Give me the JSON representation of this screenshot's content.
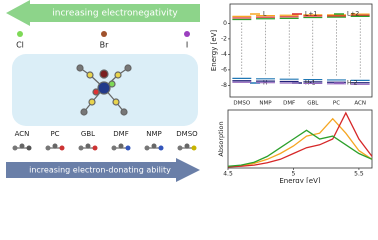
{
  "top_arrow": "increasing electronegativity",
  "halogens": [
    "Cl",
    "Br",
    "I"
  ],
  "solvents": [
    "ACN",
    "PC",
    "GBL",
    "DMF",
    "NMP",
    "DMSO"
  ],
  "bottom_arrow": "increasing electron-donating ability",
  "chart_data": [
    {
      "type": "level",
      "y_label": "Energy [eV]",
      "categories": [
        "DMSO",
        "NMP",
        "DMF",
        "GBL",
        "PC",
        "ACN"
      ],
      "ylim": [
        -9.5,
        2.5
      ],
      "yticks": [
        0,
        -2,
        -4,
        -6,
        -8
      ],
      "series": [
        {
          "name": "L",
          "color": "#f5a623",
          "values": [
            0.9,
            1.0,
            1.05,
            1.1,
            1.1,
            1.2
          ]
        },
        {
          "name": "L+1",
          "color": "#d62728",
          "values": [
            0.7,
            0.8,
            0.85,
            0.95,
            0.95,
            1.05
          ]
        },
        {
          "name": "L+2",
          "color": "#2ca02c",
          "values": [
            0.5,
            0.6,
            0.65,
            0.75,
            0.8,
            0.9
          ]
        },
        {
          "name": "H",
          "color": "#1f77b4",
          "values": [
            -7.1,
            -7.15,
            -7.2,
            -7.25,
            -7.3,
            -7.35
          ]
        },
        {
          "name": "H-1",
          "color": "#22227a",
          "values": [
            -7.4,
            -7.45,
            -7.5,
            -7.55,
            -7.6,
            -7.65
          ]
        },
        {
          "name": "H-2",
          "color": "#9467bd",
          "values": [
            -7.6,
            -7.65,
            -7.7,
            -7.75,
            -7.8,
            -7.85
          ]
        }
      ]
    },
    {
      "type": "line",
      "x_label": "Energy [eV]",
      "y_label": "Absorption",
      "x": [
        4.5,
        4.6,
        4.7,
        4.8,
        4.9,
        5.0,
        5.1,
        5.2,
        5.3,
        5.4,
        5.5,
        5.6
      ],
      "xlim": [
        4.5,
        5.6
      ],
      "xticks": [
        4.5,
        5.0,
        5.5
      ],
      "ylim": [
        0,
        1
      ],
      "series": [
        {
          "color": "#f5a623",
          "values": [
            0.02,
            0.04,
            0.08,
            0.15,
            0.25,
            0.38,
            0.55,
            0.6,
            0.85,
            0.6,
            0.3,
            0.15
          ]
        },
        {
          "color": "#d62728",
          "values": [
            0.02,
            0.03,
            0.05,
            0.09,
            0.15,
            0.25,
            0.35,
            0.4,
            0.5,
            0.95,
            0.5,
            0.2
          ]
        },
        {
          "color": "#2ca02c",
          "values": [
            0.03,
            0.05,
            0.1,
            0.2,
            0.35,
            0.5,
            0.65,
            0.5,
            0.55,
            0.4,
            0.25,
            0.15
          ]
        }
      ]
    }
  ]
}
